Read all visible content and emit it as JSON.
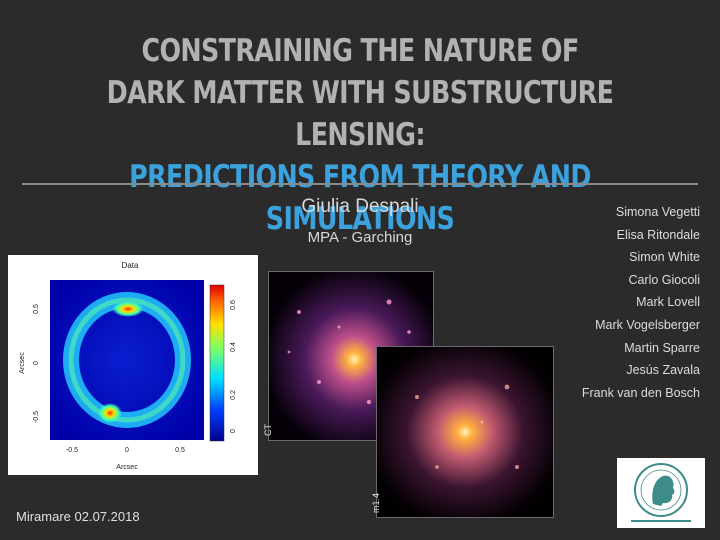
{
  "title": {
    "line1": "CONSTRAINING THE NATURE OF",
    "line2": "DARK MATTER WITH SUBSTRUCTURE LENSING:",
    "line3": "PREDICTIONS FROM THEORY AND SIMULATIONS"
  },
  "author": "Giulia Despali",
  "affiliation": "MPA - Garching",
  "coauthors": [
    "Simona Vegetti",
    "Elisa Ritondale",
    "Simon White",
    "Carlo Giocoli",
    "Mark Lovell",
    "Mark Vogelsberger",
    "Martin Sparre",
    "Jesús Zavala",
    "Frank van den Bosch"
  ],
  "footer": "Miramare 02.07.2018",
  "data_plot": {
    "title": "Data",
    "x_label": "Arcsec",
    "y_label": "Arcsec",
    "x_ticks": [
      "-0.5",
      "0",
      "0.5"
    ],
    "y_ticks": [
      "-0.5",
      "0",
      "0.5"
    ],
    "colorbar_ticks": [
      "0",
      "0.2",
      "0.4",
      "0.6"
    ]
  },
  "simulations": {
    "sim1_label": "CT",
    "sim2_label": "m1.4"
  },
  "colors": {
    "title_gray": "#b2b2b2",
    "title_blue": "#3ba2de",
    "background": "#2b2b2b"
  }
}
